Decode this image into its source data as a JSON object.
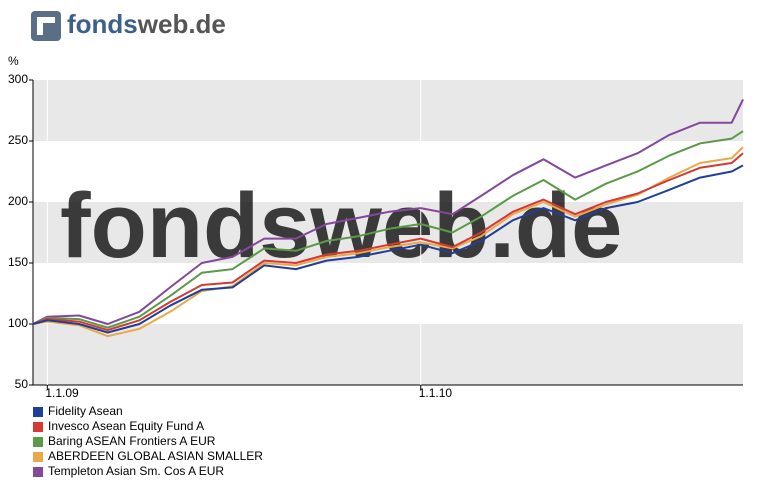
{
  "logo": {
    "brand": "fonds",
    "suffix": "web.de"
  },
  "chart_data": {
    "type": "line",
    "ylabel": "%",
    "x": [
      "2008-12-18",
      "2009-01-01",
      "2009-02-01",
      "2009-03-01",
      "2009-04-01",
      "2009-05-01",
      "2009-06-01",
      "2009-07-01",
      "2009-08-01",
      "2009-09-01",
      "2009-10-01",
      "2009-11-01",
      "2009-12-01",
      "2010-01-01",
      "2010-02-01",
      "2010-03-01",
      "2010-04-01",
      "2010-05-01",
      "2010-06-01",
      "2010-07-01",
      "2010-08-01",
      "2010-09-01",
      "2010-10-01",
      "2010-11-01",
      "2010-11-12"
    ],
    "xlim": [
      "2008-12-18",
      "2010-11-12"
    ],
    "xticks": [
      {
        "value": "2009-01-01",
        "label": "1.1.09"
      },
      {
        "value": "2010-01-01",
        "label": "1.1.10"
      }
    ],
    "ylim": [
      50,
      300
    ],
    "yticks": [
      50,
      100,
      150,
      200,
      250,
      300
    ],
    "grid": "bands",
    "series": [
      {
        "name": "Fidelity Asean",
        "color": "#1f3f99",
        "values": [
          100,
          103,
          100,
          93,
          100,
          115,
          128,
          130,
          148,
          145,
          152,
          155,
          160,
          165,
          158,
          168,
          185,
          195,
          185,
          195,
          200,
          210,
          220,
          225,
          230
        ]
      },
      {
        "name": "Invesco Asean Equity Fund A",
        "color": "#d23a32",
        "values": [
          100,
          104,
          102,
          95,
          103,
          118,
          132,
          134,
          152,
          150,
          157,
          160,
          165,
          170,
          163,
          175,
          192,
          202,
          190,
          200,
          207,
          218,
          228,
          232,
          240
        ]
      },
      {
        "name": "Baring ASEAN Frontiers A EUR",
        "color": "#5a9a48",
        "values": [
          100,
          105,
          104,
          97,
          106,
          123,
          142,
          145,
          162,
          160,
          168,
          172,
          178,
          182,
          175,
          188,
          205,
          218,
          202,
          215,
          225,
          238,
          248,
          252,
          258
        ]
      },
      {
        "name": "ABERDEEN GLOBAL ASIAN SMALLER",
        "color": "#eba84a",
        "values": [
          100,
          102,
          99,
          90,
          96,
          110,
          127,
          131,
          150,
          148,
          155,
          158,
          163,
          167,
          162,
          172,
          190,
          200,
          188,
          198,
          206,
          220,
          232,
          236,
          245
        ]
      },
      {
        "name": "Templeton Asian Sm. Cos A EUR",
        "color": "#84489a",
        "values": [
          100,
          106,
          107,
          100,
          110,
          130,
          150,
          155,
          170,
          170,
          182,
          187,
          192,
          195,
          190,
          205,
          222,
          235,
          220,
          230,
          240,
          255,
          265,
          265,
          284
        ]
      }
    ]
  }
}
